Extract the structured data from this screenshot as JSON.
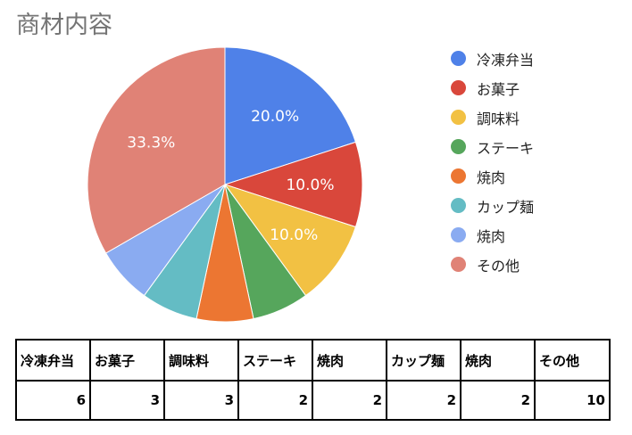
{
  "title": "商材内容",
  "chart_data": {
    "type": "pie",
    "title": "商材内容",
    "slices": [
      {
        "label": "冷凍弁当",
        "value": 6,
        "percent_label": "20.0%",
        "color": "#4f81e8"
      },
      {
        "label": "お菓子",
        "value": 3,
        "percent_label": "10.0%",
        "color": "#d9473b"
      },
      {
        "label": "調味料",
        "value": 3,
        "percent_label": "10.0%",
        "color": "#f2c143"
      },
      {
        "label": "ステーキ",
        "value": 2,
        "percent_label": "",
        "color": "#56a65c"
      },
      {
        "label": "焼肉",
        "value": 2,
        "percent_label": "",
        "color": "#ec7632"
      },
      {
        "label": "カップ麺",
        "value": 2,
        "percent_label": "",
        "color": "#64bcc4"
      },
      {
        "label": "焼肉",
        "value": 2,
        "percent_label": "",
        "color": "#8aabf1"
      },
      {
        "label": "その他",
        "value": 10,
        "percent_label": "33.3%",
        "color": "#e08276"
      }
    ],
    "legend_position": "right"
  },
  "table": {
    "headers": [
      "冷凍弁当",
      "お菓子",
      "調味料",
      "ステーキ",
      "焼肉",
      "カップ麺",
      "焼肉",
      "その他"
    ],
    "values": [
      "6",
      "3",
      "3",
      "2",
      "2",
      "2",
      "2",
      "10"
    ]
  }
}
